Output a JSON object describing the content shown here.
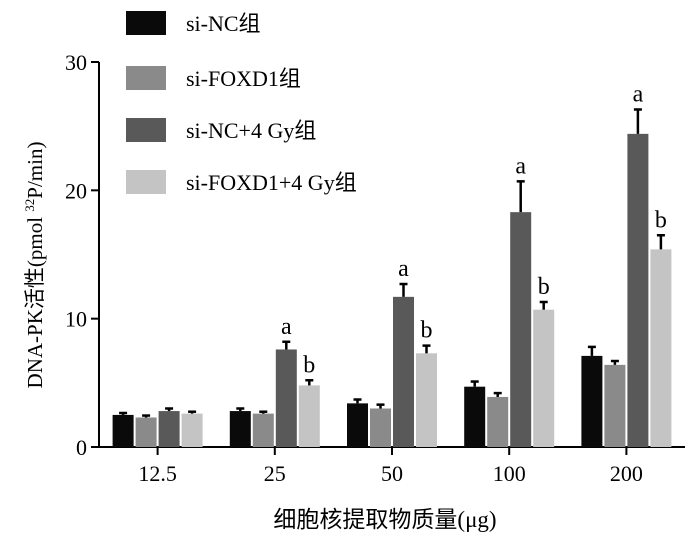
{
  "chart_data": {
    "type": "bar",
    "title": "",
    "xlabel": "细胞核提取物质量(μg)",
    "ylabel": "DNA-PK活性(pmol 32P/min)",
    "ylabel_parts": {
      "before": "DNA-PK活性(pmol ",
      "sup": "32",
      "after": "P/min)"
    },
    "ylim": [
      0,
      30
    ],
    "yticks": [
      "0",
      "10",
      "20",
      "30"
    ],
    "categories": [
      "12.5",
      "25",
      "50",
      "100",
      "200"
    ],
    "legend_position": "top-left",
    "series": [
      {
        "name": "si-NC组",
        "color": "#0a0a0a",
        "values": [
          2.5,
          2.8,
          3.4,
          4.7,
          7.1
        ],
        "errors": [
          0.15,
          0.2,
          0.3,
          0.4,
          0.7
        ],
        "labels": [
          "",
          "",
          "",
          "",
          ""
        ]
      },
      {
        "name": "si-FOXD1组",
        "color": "#8a8a8a",
        "values": [
          2.3,
          2.6,
          3.0,
          3.9,
          6.4
        ],
        "errors": [
          0.15,
          0.15,
          0.3,
          0.3,
          0.3
        ],
        "labels": [
          "",
          "",
          "",
          "",
          ""
        ]
      },
      {
        "name": "si-NC+4 Gy组",
        "color": "#595959",
        "values": [
          2.8,
          7.6,
          11.7,
          18.3,
          24.4
        ],
        "errors": [
          0.2,
          0.6,
          1.0,
          2.4,
          1.9
        ],
        "labels": [
          "",
          "a",
          "a",
          "a",
          "a"
        ]
      },
      {
        "name": "si-FOXD1+4 Gy组",
        "color": "#c4c4c4",
        "values": [
          2.6,
          4.8,
          7.3,
          10.7,
          15.4
        ],
        "errors": [
          0.15,
          0.4,
          0.6,
          0.6,
          1.1
        ],
        "labels": [
          "",
          "b",
          "b",
          "b",
          "b"
        ]
      }
    ]
  }
}
